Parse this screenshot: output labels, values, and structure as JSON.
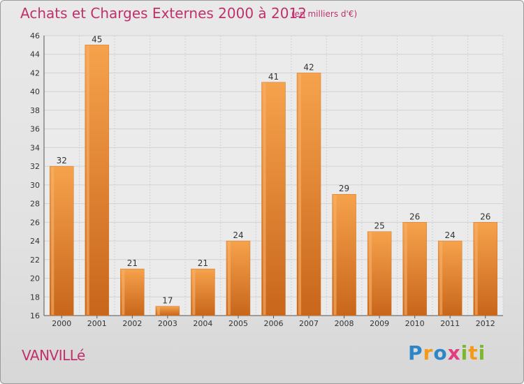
{
  "header": {
    "title": "Achats et Charges Externes 2000 à 2012",
    "subtitle": "(en milliers d'€)"
  },
  "footer": {
    "place": "VANVILLé",
    "brand": "Proxiti"
  },
  "colors": {
    "title": "#c0306b",
    "bar_light": "#f6a24c",
    "bar_dark": "#c8661b"
  },
  "chart_data": {
    "type": "bar",
    "categories": [
      "2000",
      "2001",
      "2002",
      "2003",
      "2004",
      "2005",
      "2006",
      "2007",
      "2008",
      "2009",
      "2010",
      "2011",
      "2012"
    ],
    "values": [
      32,
      45,
      21,
      17,
      21,
      24,
      41,
      42,
      29,
      25,
      26,
      24,
      26
    ],
    "ylim": [
      16,
      46
    ],
    "yticks": [
      16,
      18,
      20,
      22,
      24,
      26,
      28,
      30,
      32,
      34,
      36,
      38,
      40,
      42,
      44,
      46
    ],
    "grid": true,
    "data_labels": true
  }
}
